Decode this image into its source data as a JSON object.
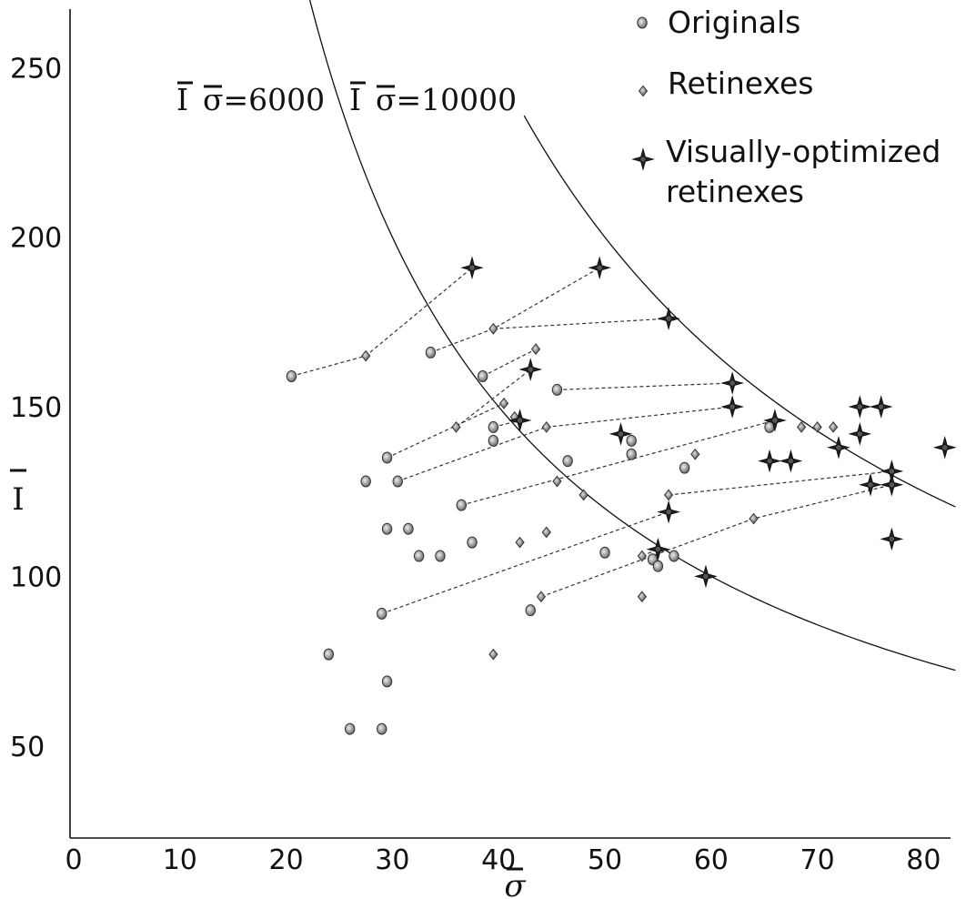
{
  "chart_data": {
    "type": "scatter",
    "xlabel": "σ",
    "ylabel": "I",
    "xlim": [
      0,
      84
    ],
    "ylim": [
      25,
      270
    ],
    "xticks": [
      0,
      10,
      20,
      30,
      40,
      50,
      60,
      70,
      80
    ],
    "yticks": [
      50,
      100,
      150,
      200,
      250
    ],
    "legend": {
      "position": "top-right",
      "entries": [
        {
          "marker": "circle",
          "label": "Originals"
        },
        {
          "marker": "diamond",
          "label": "Retinexes"
        },
        {
          "marker": "star",
          "label": "Visually-optimized",
          "label2": "retinexes"
        }
      ]
    },
    "curves": [
      {
        "label_left": "I",
        "label_right": "σ=6000",
        "product": 6000,
        "x_start": 20.4,
        "x_end": 83
      },
      {
        "label_left": "I",
        "label_right": "σ=10000",
        "product": 10000,
        "x_start": 42.4,
        "x_end": 83
      }
    ],
    "originals": [
      [
        20.5,
        159
      ],
      [
        33.6,
        166
      ],
      [
        38.5,
        159
      ],
      [
        45.5,
        155
      ],
      [
        39.5,
        144
      ],
      [
        39.5,
        140
      ],
      [
        29.5,
        135
      ],
      [
        27.5,
        128
      ],
      [
        30.5,
        128
      ],
      [
        46.5,
        134
      ],
      [
        36.5,
        121
      ],
      [
        29.5,
        114
      ],
      [
        31.5,
        114
      ],
      [
        37.5,
        110
      ],
      [
        32.5,
        106
      ],
      [
        34.5,
        106
      ],
      [
        29,
        89
      ],
      [
        24,
        77
      ],
      [
        29.5,
        69
      ],
      [
        26,
        55
      ],
      [
        29,
        55
      ],
      [
        43,
        90
      ],
      [
        50,
        107
      ],
      [
        52.5,
        136
      ],
      [
        52.5,
        140
      ],
      [
        54.5,
        105
      ],
      [
        55,
        103
      ],
      [
        56.5,
        106
      ],
      [
        57.5,
        132
      ],
      [
        65.5,
        144
      ]
    ],
    "retinexes": [
      [
        27.5,
        165
      ],
      [
        39.5,
        173
      ],
      [
        43.5,
        167
      ],
      [
        36,
        144
      ],
      [
        40.5,
        151
      ],
      [
        41.5,
        147
      ],
      [
        44.5,
        144
      ],
      [
        45.5,
        128
      ],
      [
        48,
        124
      ],
      [
        58.5,
        136
      ],
      [
        56,
        124
      ],
      [
        44.5,
        113
      ],
      [
        42,
        110
      ],
      [
        39.5,
        77
      ],
      [
        53.5,
        106
      ],
      [
        53.5,
        94
      ],
      [
        44,
        94
      ],
      [
        64,
        117
      ],
      [
        68.5,
        144
      ],
      [
        70,
        144
      ],
      [
        71.5,
        144
      ]
    ],
    "visually_optimized": [
      [
        37.5,
        191
      ],
      [
        49.5,
        191
      ],
      [
        56,
        176
      ],
      [
        43,
        161
      ],
      [
        62,
        157
      ],
      [
        62,
        150
      ],
      [
        42,
        146
      ],
      [
        51.5,
        142
      ],
      [
        56,
        119
      ],
      [
        55,
        108
      ],
      [
        59.5,
        100
      ],
      [
        66,
        146
      ],
      [
        65.5,
        134
      ],
      [
        67.5,
        134
      ],
      [
        72,
        138
      ],
      [
        74,
        142
      ],
      [
        74,
        150
      ],
      [
        76,
        150
      ],
      [
        75,
        127
      ],
      [
        77,
        131
      ],
      [
        77,
        127
      ],
      [
        77,
        111
      ],
      [
        82,
        138
      ]
    ],
    "trajectories": [
      [
        [
          20.5,
          159
        ],
        [
          27.5,
          165
        ],
        [
          37.5,
          191
        ]
      ],
      [
        [
          33.6,
          166
        ],
        [
          39.5,
          173
        ],
        [
          49.5,
          191
        ]
      ],
      [
        [
          39.5,
          173
        ],
        [
          56,
          176
        ]
      ],
      [
        [
          38.5,
          159
        ],
        [
          43.5,
          167
        ]
      ],
      [
        [
          36,
          144
        ],
        [
          43,
          161
        ]
      ],
      [
        [
          45.5,
          155
        ],
        [
          62,
          157
        ]
      ],
      [
        [
          39.5,
          144
        ],
        [
          42,
          146
        ]
      ],
      [
        [
          44.5,
          144
        ],
        [
          62,
          150
        ]
      ],
      [
        [
          29.5,
          135
        ],
        [
          40.5,
          151
        ]
      ],
      [
        [
          30.5,
          128
        ],
        [
          44.5,
          144
        ]
      ],
      [
        [
          36.5,
          121
        ],
        [
          66,
          146
        ]
      ],
      [
        [
          56,
          124
        ],
        [
          77,
          131
        ]
      ],
      [
        [
          29,
          89
        ],
        [
          56,
          119
        ]
      ],
      [
        [
          44,
          94
        ],
        [
          64,
          117
        ],
        [
          77,
          127
        ]
      ],
      [
        [
          53.5,
          106
        ],
        [
          55,
          108
        ]
      ]
    ]
  }
}
